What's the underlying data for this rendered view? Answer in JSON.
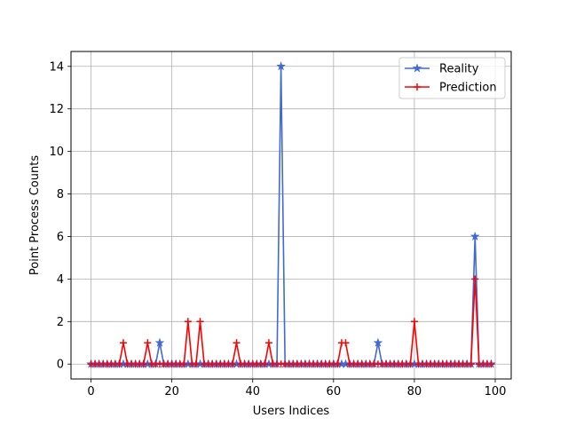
{
  "chart_data": {
    "type": "line",
    "title": "",
    "xlabel": "Users Indices",
    "ylabel": "Point Process Counts",
    "xlim": [
      -4.95,
      103.95
    ],
    "ylim": [
      -0.7,
      14.7
    ],
    "xticks": [
      0,
      20,
      40,
      60,
      80,
      100
    ],
    "yticks": [
      0,
      2,
      4,
      6,
      8,
      10,
      12,
      14
    ],
    "grid": true,
    "legend": "top-right",
    "x": [
      0,
      1,
      2,
      3,
      4,
      5,
      6,
      7,
      8,
      9,
      10,
      11,
      12,
      13,
      14,
      15,
      16,
      17,
      18,
      19,
      20,
      21,
      22,
      23,
      24,
      25,
      26,
      27,
      28,
      29,
      30,
      31,
      32,
      33,
      34,
      35,
      36,
      37,
      38,
      39,
      40,
      41,
      42,
      43,
      44,
      45,
      46,
      47,
      48,
      49,
      50,
      51,
      52,
      53,
      54,
      55,
      56,
      57,
      58,
      59,
      60,
      61,
      62,
      63,
      64,
      65,
      66,
      67,
      68,
      69,
      70,
      71,
      72,
      73,
      74,
      75,
      76,
      77,
      78,
      79,
      80,
      81,
      82,
      83,
      84,
      85,
      86,
      87,
      88,
      89,
      90,
      91,
      92,
      93,
      94,
      95,
      96,
      97,
      98,
      99
    ],
    "series": [
      {
        "name": "Reality",
        "color": "#4169d6",
        "marker": "star",
        "values": [
          0,
          0,
          0,
          0,
          0,
          0,
          0,
          0,
          0,
          0,
          0,
          0,
          0,
          0,
          0,
          0,
          0,
          1,
          0,
          0,
          0,
          0,
          0,
          0,
          0,
          0,
          0,
          0,
          0,
          0,
          0,
          0,
          0,
          0,
          0,
          0,
          0,
          0,
          0,
          0,
          0,
          0,
          0,
          0,
          0,
          0,
          0,
          14,
          0,
          0,
          0,
          0,
          0,
          0,
          0,
          0,
          0,
          0,
          0,
          0,
          0,
          0,
          0,
          0,
          0,
          0,
          0,
          0,
          0,
          0,
          0,
          1,
          0,
          0,
          0,
          0,
          0,
          0,
          0,
          0,
          0,
          0,
          0,
          0,
          0,
          0,
          0,
          0,
          0,
          0,
          0,
          0,
          0,
          0,
          0,
          6,
          0,
          0,
          0,
          0
        ]
      },
      {
        "name": "Prediction",
        "color": "#ff0000",
        "marker": "plus",
        "values": [
          0,
          0,
          0,
          0,
          0,
          0,
          0,
          0,
          1,
          0,
          0,
          0,
          0,
          0,
          1,
          0,
          0,
          0,
          0,
          0,
          0,
          0,
          0,
          0,
          2,
          0,
          0,
          2,
          0,
          0,
          0,
          0,
          0,
          0,
          0,
          0,
          1,
          0,
          0,
          0,
          0,
          0,
          0,
          0,
          1,
          0,
          0,
          0,
          0,
          0,
          0,
          0,
          0,
          0,
          0,
          0,
          0,
          0,
          0,
          0,
          0,
          0,
          1,
          1,
          0,
          0,
          0,
          0,
          0,
          0,
          0,
          0,
          0,
          0,
          0,
          0,
          0,
          0,
          0,
          0,
          2,
          0,
          0,
          0,
          0,
          0,
          0,
          0,
          0,
          0,
          0,
          0,
          0,
          0,
          0,
          4,
          0,
          0,
          0,
          0
        ]
      }
    ]
  }
}
